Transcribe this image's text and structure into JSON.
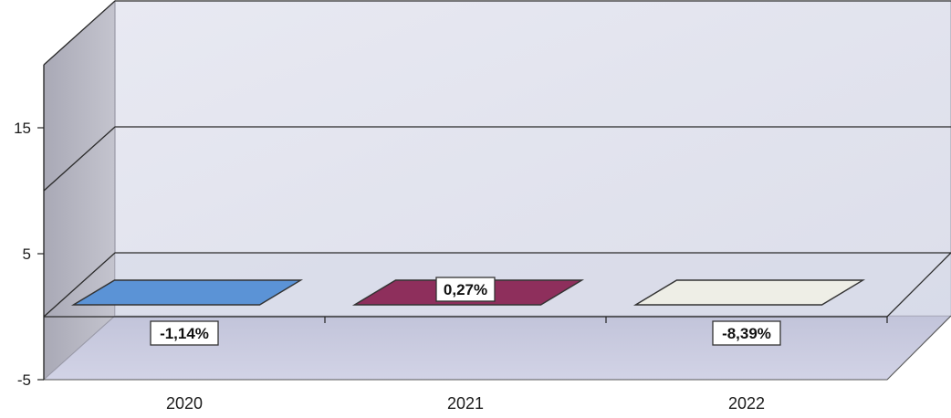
{
  "chart_data": {
    "type": "bar",
    "view": "3d",
    "categories": [
      "2020",
      "2021",
      "2022"
    ],
    "values": [
      -1.14,
      0.27,
      -8.39
    ],
    "data_labels": [
      "-1,14%",
      "0,27%",
      "-8,39%"
    ],
    "ylim": [
      -5,
      20
    ],
    "yticks": [
      -5,
      5,
      15
    ],
    "gridlines": [
      0,
      10,
      20
    ],
    "grid": true,
    "legend": "none",
    "title": "",
    "xlabel": "",
    "ylabel": ""
  },
  "colors": {
    "bars": [
      "#5b93d6",
      "#8e2f5c",
      "#eeeee6"
    ],
    "back_wall": "#e3e5ef",
    "side_wall": "#b2b2be",
    "floor": "#c9cbe0"
  }
}
